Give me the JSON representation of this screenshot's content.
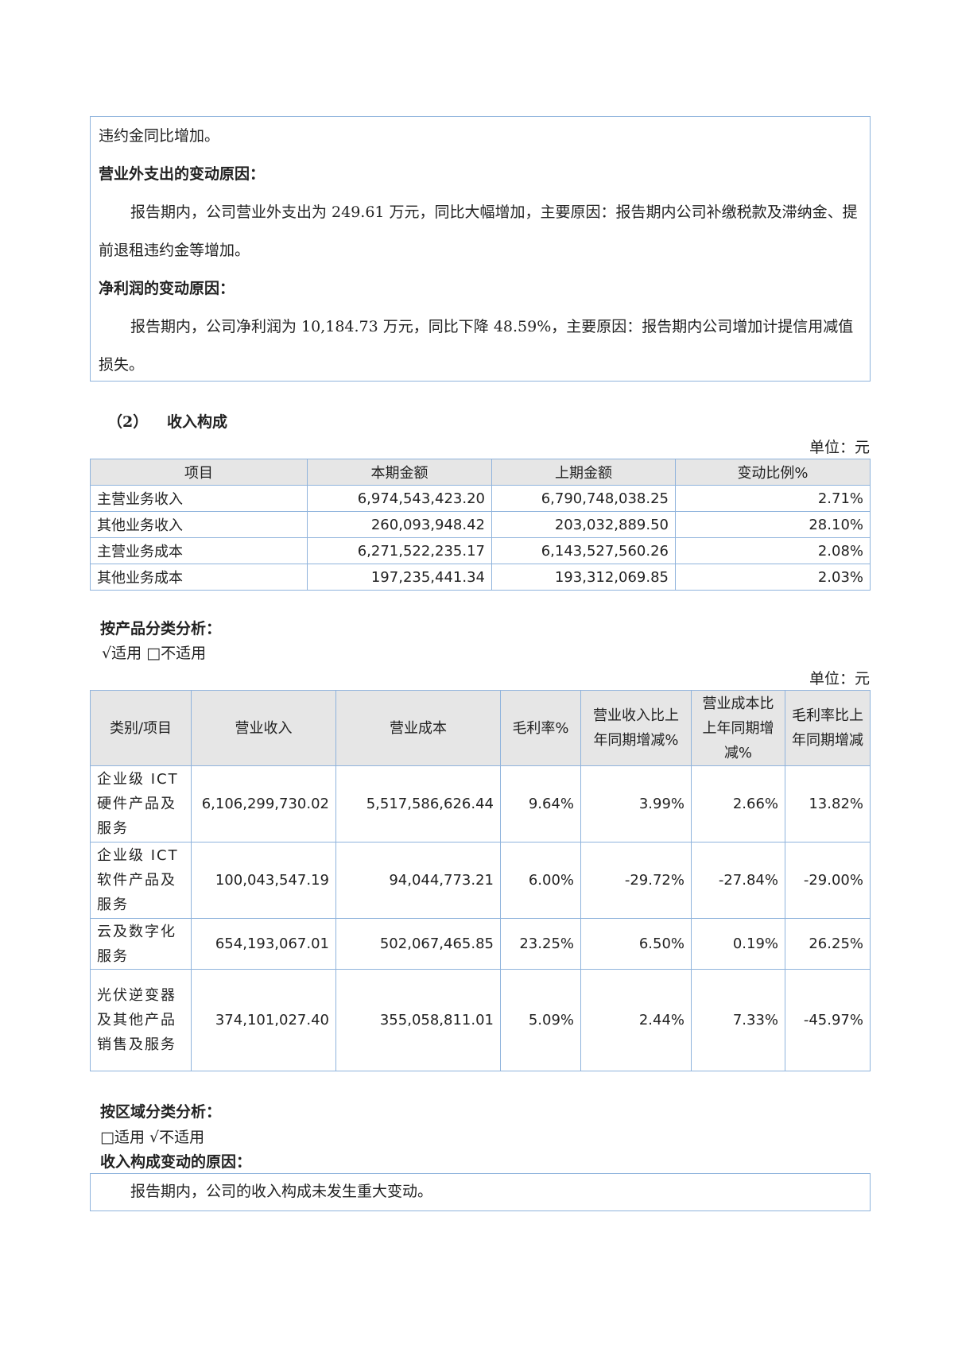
{
  "explanation_box": {
    "lines": [
      "违约金同比增加。"
    ],
    "sections": [
      {
        "heading": "营业外支出的变动原因：",
        "text": "报告期内，公司营业外支出为 249.61 万元，同比大幅增加，主要原因：报告期内公司补缴税款及滞纳金、提前退租违约金等增加。"
      },
      {
        "heading": "净利润的变动原因：",
        "text": "报告期内，公司净利润为 10,184.73 万元，同比下降 48.59%，主要原因：报告期内公司增加计提信用减值损失。"
      }
    ]
  },
  "section2": {
    "number": "（2）",
    "title": "收入构成"
  },
  "unit_label": "单位：元",
  "table1": {
    "headers": [
      "项目",
      "本期金额",
      "上期金额",
      "变动比例%"
    ],
    "rows": [
      [
        "主营业务收入",
        "6,974,543,423.20",
        "6,790,748,038.25",
        "2.71%"
      ],
      [
        "其他业务收入",
        "260,093,948.42",
        "203,032,889.50",
        "28.10%"
      ],
      [
        "主营业务成本",
        "6,271,522,235.17",
        "6,143,527,560.26",
        "2.08%"
      ],
      [
        "其他业务成本",
        "197,235,441.34",
        "193,312,069.85",
        "2.03%"
      ]
    ]
  },
  "product_analysis": {
    "title": "按产品分类分析：",
    "options": "√适用 □不适用"
  },
  "table2": {
    "headers": [
      "类别/项目",
      "营业收入",
      "营业成本",
      "毛利率%",
      "营业收入比上年同期增减%",
      "营业成本比上年同期增减%",
      "毛利率比上年同期增减"
    ],
    "rows": [
      [
        "企业级 ICT 硬件产品及服务",
        "6,106,299,730.02",
        "5,517,586,626.44",
        "9.64%",
        "3.99%",
        "2.66%",
        "13.82%"
      ],
      [
        "企业级 ICT 软件产品及服务",
        "100,043,547.19",
        "94,044,773.21",
        "6.00%",
        "-29.72%",
        "-27.84%",
        "-29.00%"
      ],
      [
        "云及数字化服务",
        "654,193,067.01",
        "502,067,465.85",
        "23.25%",
        "6.50%",
        "0.19%",
        "26.25%"
      ],
      [
        "光伏逆变器及其他产品销售及服务",
        "374,101,027.40",
        "355,058,811.01",
        "5.09%",
        "2.44%",
        "7.33%",
        "-45.97%"
      ]
    ]
  },
  "region_analysis": {
    "title": "按区域分类分析：",
    "options": "□适用 √不适用"
  },
  "change_reason": {
    "title": "收入构成变动的原因：",
    "text": "报告期内，公司的收入构成未发生重大变动。"
  }
}
